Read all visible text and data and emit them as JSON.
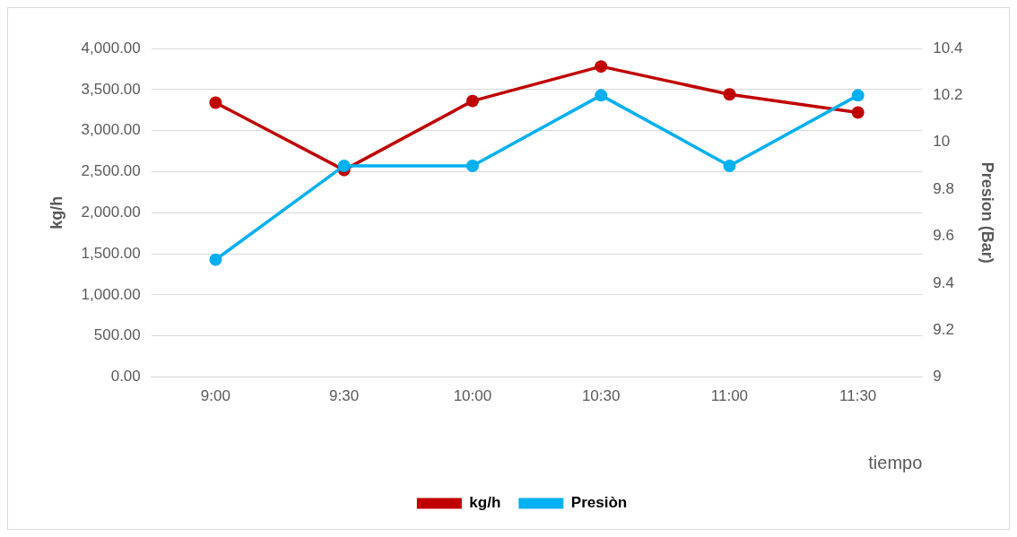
{
  "chart_data": {
    "type": "line",
    "xlabel": "tiempo",
    "ylabel": "kg/h",
    "y2label": "Presion (Bar)",
    "categories": [
      "9:00",
      "9:30",
      "10:00",
      "10:30",
      "11:00",
      "11:30"
    ],
    "series": [
      {
        "name": "kg/h",
        "color": "#c00000",
        "values": [
          3340,
          2520,
          3360,
          3780,
          3440,
          3220
        ]
      },
      {
        "name": "Presiòn",
        "color": "#00b0f0",
        "axis": "y2",
        "values": [
          9.5,
          9.9,
          9.9,
          10.2,
          9.9,
          10.2
        ]
      }
    ],
    "ylim": [
      0,
      4000
    ],
    "yticks": [
      {
        "value": 0,
        "label": "0.00"
      },
      {
        "value": 500,
        "label": "500.00"
      },
      {
        "value": 1000,
        "label": "1,000.00"
      },
      {
        "value": 1500,
        "label": "1,500.00"
      },
      {
        "value": 2000,
        "label": "2,000.00"
      },
      {
        "value": 2500,
        "label": "2,500.00"
      },
      {
        "value": 3000,
        "label": "3,000.00"
      },
      {
        "value": 3500,
        "label": "3,500.00"
      },
      {
        "value": 4000,
        "label": "4,000.00"
      }
    ],
    "y2lim": [
      9,
      10.4
    ],
    "y2ticks": [
      9,
      9.2,
      9.4,
      9.6,
      9.8,
      10,
      10.2,
      10.4
    ],
    "grid": "y",
    "legend": "bottom",
    "marker": "circle",
    "line_style": "solid"
  }
}
